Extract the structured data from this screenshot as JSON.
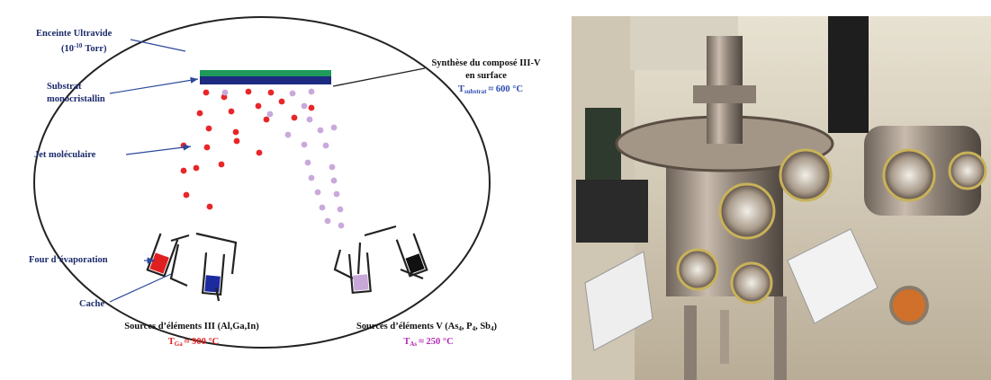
{
  "diagram": {
    "chamber": {
      "label": "Enceinte Ultravide",
      "pressure": {
        "open": "(10",
        "exponent": "-10",
        "close": "Torr)"
      }
    },
    "substrate": {
      "line1": "Substrat",
      "line2": "monocristallin"
    },
    "beam": "Jet moléculaire",
    "furnace": "Four d’évaporation",
    "shutter": "Cache",
    "synthesis": {
      "line1": "Synthèse du composé III-V",
      "line2": "en surface",
      "temp": {
        "symbol": "T",
        "sub": "substrat",
        "value": "≈ 600 °C"
      }
    },
    "sources_iii": {
      "label": "Sources d’éléments III (Al,Ga,In)",
      "temp": {
        "symbol": "T",
        "sub": "Ga",
        "value": "≈ 900 °C"
      }
    },
    "sources_v": {
      "label_start": "Sources d’éléments V (As",
      "sub1": "4",
      "mid1": ", P",
      "sub2": "4",
      "mid2": ", Sb",
      "sub3": "4",
      "label_end": ")",
      "temp": {
        "symbol": "T",
        "sub": "As",
        "value": "≈ 250 °C"
      }
    }
  }
}
